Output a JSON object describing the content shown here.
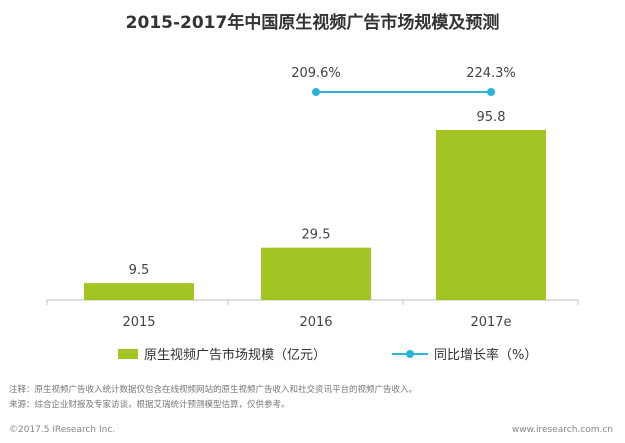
{
  "title": "2015-2017年中国原生视频广告市场规模及预测",
  "legend": {
    "bar_label": "原生视频广告市场规模（亿元）",
    "line_label": "同比增长率（%）"
  },
  "chart_data": {
    "type": "bar",
    "categories": [
      "2015",
      "2016",
      "2017e"
    ],
    "series": [
      {
        "name": "原生视频广告市场规模（亿元）",
        "type": "bar",
        "values": [
          9.5,
          29.5,
          95.8
        ],
        "labels": [
          "9.5",
          "29.5",
          "95.8"
        ],
        "color": "#a2c523"
      },
      {
        "name": "同比增长率（%）",
        "type": "line",
        "values": [
          null,
          209.6,
          224.3
        ],
        "labels": [
          null,
          "209.6%",
          "224.3%"
        ],
        "color": "#29b6d6"
      }
    ],
    "axis_color": "#bfbfbf",
    "grid": false
  },
  "footer": {
    "note": "注释：原生视频广告收入统计数据仅包含在线视频网站的原生视频广告收入和社交资讯平台的视频广告收入。",
    "source": "来源：综合企业财报及专家访谈，根据艾瑞统计预测模型估算，仅供参考。",
    "copyright": "©2017.5 iResearch Inc.",
    "website": "www.iresearch.com.cn"
  }
}
